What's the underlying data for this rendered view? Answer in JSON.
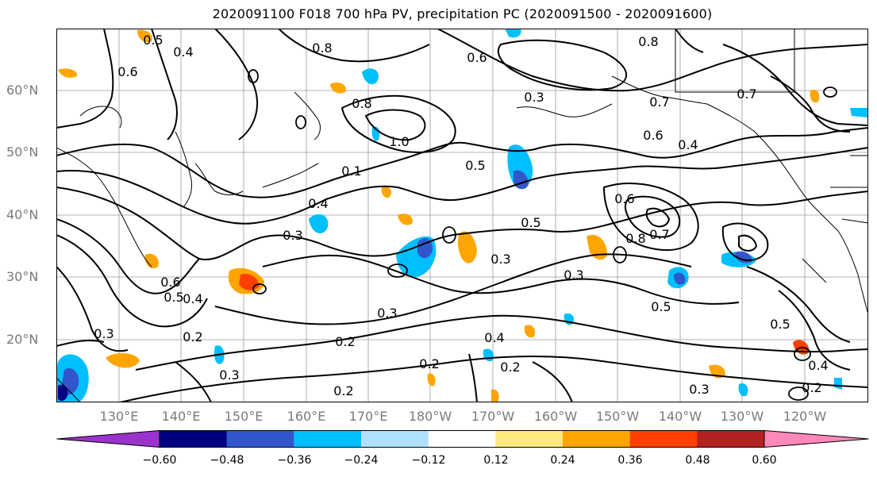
{
  "title": "2020091100 F018 700 hPa PV, precipitation PC (2020091500 - 2020091600)",
  "lat_labels": [
    "60°N",
    "50°N",
    "40°N",
    "30°N",
    "20°N"
  ],
  "lon_labels": [
    "130°E",
    "140°E",
    "150°E",
    "160°E",
    "170°E",
    "180°W",
    "170°W",
    "160°W",
    "150°W",
    "140°W",
    "130°W",
    "120°W"
  ],
  "contour_labels": [
    "0.5",
    "0.4",
    "0.8",
    "0.6",
    "0.8",
    "0.7",
    "0.6",
    "0.3",
    "0.8",
    "1.0",
    "0.1",
    "0.5",
    "0.6",
    "0.4",
    "0.7",
    "0.4",
    "0.3",
    "0.5",
    "0.6",
    "0.8",
    "0.7",
    "0.3",
    "0.6",
    "0.5",
    "0.4",
    "0.3",
    "0.2",
    "0.3",
    "0.2",
    "0.2",
    "0.3",
    "0.5",
    "0.2",
    "0.4",
    "0.2",
    "0.2",
    "0.3",
    "0.4",
    "0.5",
    "0.3"
  ],
  "colorbar": {
    "colors": [
      "#9933cc",
      "#000080",
      "#3355cc",
      "#00bfff",
      "#b0e0ff",
      "#ffffff",
      "#ffe97f",
      "#ffa500",
      "#ff4000",
      "#b22222",
      "#ff88bb"
    ],
    "tick_labels": [
      "−0.60",
      "−0.48",
      "−0.36",
      "−0.24",
      "−0.12",
      "0.12",
      "0.24",
      "0.36",
      "0.48",
      "0.60"
    ]
  }
}
